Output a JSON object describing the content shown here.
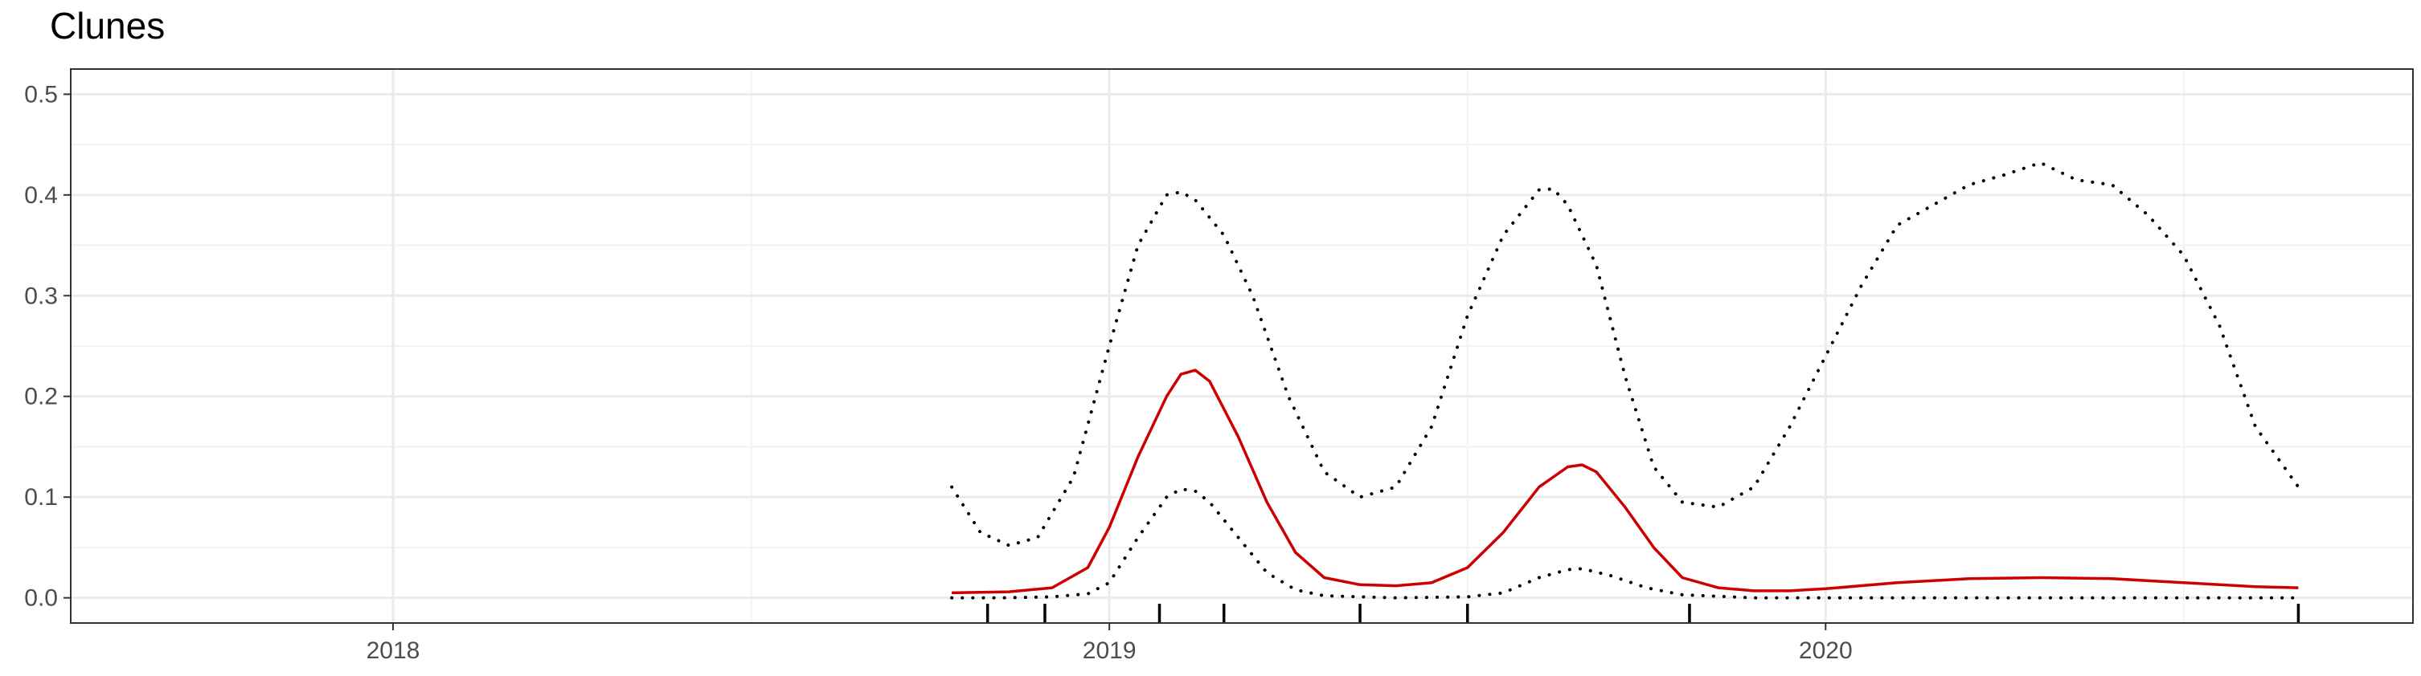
{
  "chart_data": {
    "type": "line",
    "title": "Clunes",
    "xlabel": "",
    "ylabel": "",
    "x_ticks": [
      "2018",
      "2019",
      "2020"
    ],
    "x_tick_values": [
      2018.0,
      2019.0,
      2020.0
    ],
    "xlim": [
      2017.55,
      2020.82
    ],
    "y_ticks": [
      "0.0",
      "0.1",
      "0.2",
      "0.3",
      "0.4",
      "0.5"
    ],
    "y_tick_values": [
      0.0,
      0.1,
      0.2,
      0.3,
      0.4,
      0.5
    ],
    "ylim": [
      -0.025,
      0.525
    ],
    "grid": true,
    "legend": "none",
    "series": [
      {
        "role": "estimate",
        "color": "#cc0000",
        "style": "solid",
        "x": [
          2018.78,
          2018.86,
          2018.92,
          2018.97,
          2019.0,
          2019.04,
          2019.08,
          2019.1,
          2019.12,
          2019.14,
          2019.18,
          2019.22,
          2019.26,
          2019.3,
          2019.35,
          2019.4,
          2019.45,
          2019.5,
          2019.55,
          2019.6,
          2019.64,
          2019.66,
          2019.68,
          2019.72,
          2019.76,
          2019.8,
          2019.85,
          2019.9,
          2019.95,
          2020.0,
          2020.1,
          2020.2,
          2020.3,
          2020.4,
          2020.5,
          2020.6,
          2020.66
        ],
        "y": [
          0.005,
          0.006,
          0.01,
          0.03,
          0.07,
          0.14,
          0.2,
          0.222,
          0.226,
          0.215,
          0.16,
          0.095,
          0.045,
          0.02,
          0.013,
          0.012,
          0.015,
          0.03,
          0.065,
          0.11,
          0.13,
          0.132,
          0.125,
          0.09,
          0.05,
          0.02,
          0.01,
          0.007,
          0.007,
          0.009,
          0.015,
          0.019,
          0.02,
          0.019,
          0.015,
          0.011,
          0.01
        ]
      },
      {
        "role": "upper-bound",
        "color": "#000000",
        "style": "dotted",
        "x": [
          2018.78,
          2018.82,
          2018.86,
          2018.9,
          2018.95,
          2019.0,
          2019.04,
          2019.08,
          2019.1,
          2019.12,
          2019.16,
          2019.2,
          2019.25,
          2019.3,
          2019.35,
          2019.4,
          2019.45,
          2019.5,
          2019.55,
          2019.6,
          2019.62,
          2019.64,
          2019.68,
          2019.72,
          2019.76,
          2019.8,
          2019.85,
          2019.9,
          2019.95,
          2020.0,
          2020.05,
          2020.1,
          2020.15,
          2020.2,
          2020.25,
          2020.3,
          2020.35,
          2020.4,
          2020.45,
          2020.5,
          2020.55,
          2020.6,
          2020.66
        ],
        "y": [
          0.11,
          0.065,
          0.052,
          0.06,
          0.12,
          0.25,
          0.35,
          0.4,
          0.403,
          0.395,
          0.36,
          0.3,
          0.2,
          0.125,
          0.1,
          0.11,
          0.17,
          0.28,
          0.36,
          0.405,
          0.406,
          0.39,
          0.33,
          0.22,
          0.13,
          0.095,
          0.09,
          0.11,
          0.17,
          0.24,
          0.31,
          0.37,
          0.39,
          0.41,
          0.42,
          0.432,
          0.415,
          0.41,
          0.38,
          0.34,
          0.27,
          0.17,
          0.11
        ]
      },
      {
        "role": "lower-bound",
        "color": "#000000",
        "style": "dotted",
        "x": [
          2018.78,
          2018.85,
          2018.92,
          2018.97,
          2019.0,
          2019.04,
          2019.08,
          2019.1,
          2019.12,
          2019.14,
          2019.18,
          2019.22,
          2019.26,
          2019.3,
          2019.4,
          2019.5,
          2019.55,
          2019.6,
          2019.64,
          2019.66,
          2019.7,
          2019.75,
          2019.8,
          2019.9,
          2020.0,
          2020.2,
          2020.4,
          2020.66
        ],
        "y": [
          0.0,
          0.0,
          0.001,
          0.004,
          0.015,
          0.06,
          0.1,
          0.108,
          0.106,
          0.095,
          0.06,
          0.025,
          0.008,
          0.002,
          0.0,
          0.001,
          0.005,
          0.02,
          0.028,
          0.029,
          0.022,
          0.01,
          0.003,
          0.0,
          0.0,
          0.0,
          0.0,
          0.0
        ]
      }
    ],
    "rug": [
      2018.83,
      2018.91,
      2019.07,
      2019.16,
      2019.35,
      2019.5,
      2019.81,
      2020.66
    ]
  }
}
